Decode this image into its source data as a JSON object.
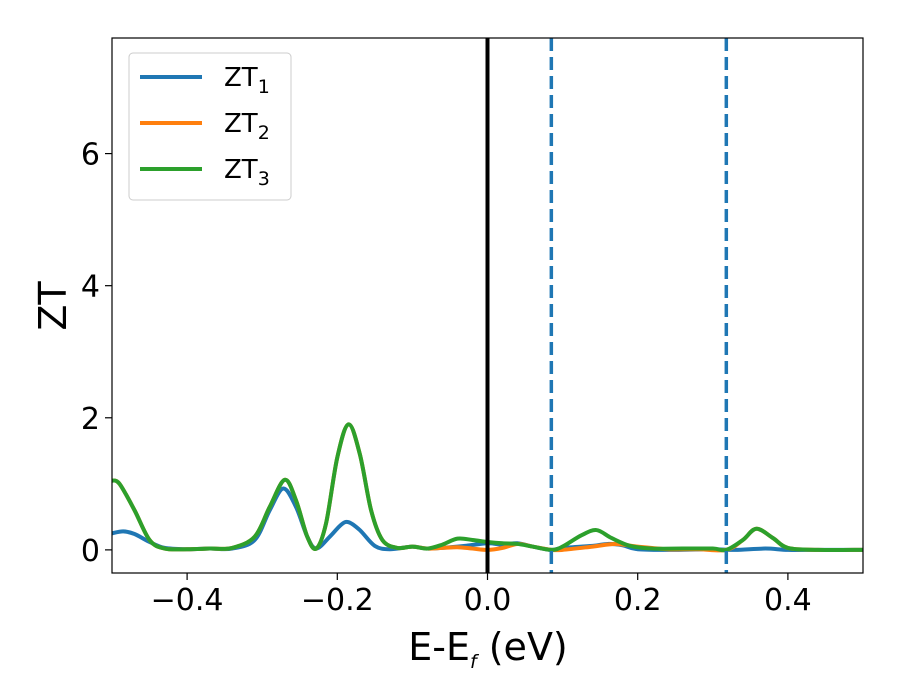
{
  "chart_data": {
    "type": "line",
    "title": "",
    "xlabel": "E-E",
    "xlabel_sub": "f",
    "xlabel_unit": " (eV)",
    "ylabel": "ZT",
    "xlim": [
      -0.5,
      0.5
    ],
    "ylim": [
      -0.35,
      7.75
    ],
    "xticks": [
      -0.4,
      -0.2,
      0.0,
      0.2,
      0.4
    ],
    "xtick_labels": [
      "−0.4",
      "−0.2",
      "0.0",
      "0.2",
      "0.4"
    ],
    "yticks": [
      0,
      2,
      4,
      6
    ],
    "ytick_labels": [
      "0",
      "2",
      "4",
      "6"
    ],
    "grid": false,
    "legend_position": "top-left",
    "vlines": [
      {
        "x": 0.0,
        "style": "solid",
        "color": "#000000"
      },
      {
        "x": 0.085,
        "style": "dashed",
        "color": "#1f77b4"
      },
      {
        "x": 0.318,
        "style": "dashed",
        "color": "#1f77b4"
      }
    ],
    "series": [
      {
        "name": "ZT",
        "sub": "1",
        "color": "#1f77b4",
        "points": [
          [
            -0.5,
            0.25
          ],
          [
            -0.485,
            0.28
          ],
          [
            -0.47,
            0.24
          ],
          [
            -0.45,
            0.12
          ],
          [
            -0.43,
            0.03
          ],
          [
            -0.4,
            0.01
          ],
          [
            -0.37,
            0.02
          ],
          [
            -0.34,
            0.02
          ],
          [
            -0.31,
            0.15
          ],
          [
            -0.29,
            0.6
          ],
          [
            -0.272,
            0.93
          ],
          [
            -0.255,
            0.65
          ],
          [
            -0.24,
            0.2
          ],
          [
            -0.228,
            0.02
          ],
          [
            -0.21,
            0.2
          ],
          [
            -0.195,
            0.38
          ],
          [
            -0.185,
            0.42
          ],
          [
            -0.17,
            0.3
          ],
          [
            -0.15,
            0.06
          ],
          [
            -0.13,
            0.01
          ],
          [
            -0.1,
            0.05
          ],
          [
            -0.08,
            0.02
          ],
          [
            -0.05,
            0.04
          ],
          [
            -0.03,
            0.06
          ],
          [
            0.0,
            0.1
          ],
          [
            0.02,
            0.08
          ],
          [
            0.04,
            0.1
          ],
          [
            0.06,
            0.05
          ],
          [
            0.085,
            0.0
          ],
          [
            0.1,
            0.03
          ],
          [
            0.14,
            0.06
          ],
          [
            0.16,
            0.09
          ],
          [
            0.18,
            0.07
          ],
          [
            0.2,
            0.01
          ],
          [
            0.25,
            0.0
          ],
          [
            0.3,
            0.01
          ],
          [
            0.33,
            0.0
          ],
          [
            0.37,
            0.02
          ],
          [
            0.4,
            0.0
          ],
          [
            0.44,
            0.0
          ],
          [
            0.5,
            0.0
          ]
        ]
      },
      {
        "name": "ZT",
        "sub": "2",
        "color": "#ff7f0e",
        "points": [
          [
            -0.5,
            1.05
          ],
          [
            -0.49,
            1.0
          ],
          [
            -0.47,
            0.6
          ],
          [
            -0.45,
            0.15
          ],
          [
            -0.43,
            0.02
          ],
          [
            -0.4,
            0.01
          ],
          [
            -0.37,
            0.02
          ],
          [
            -0.34,
            0.03
          ],
          [
            -0.31,
            0.2
          ],
          [
            -0.29,
            0.65
          ],
          [
            -0.27,
            1.06
          ],
          [
            -0.255,
            0.75
          ],
          [
            -0.24,
            0.2
          ],
          [
            -0.228,
            0.02
          ],
          [
            -0.215,
            0.4
          ],
          [
            -0.2,
            1.4
          ],
          [
            -0.185,
            1.9
          ],
          [
            -0.17,
            1.45
          ],
          [
            -0.155,
            0.6
          ],
          [
            -0.14,
            0.15
          ],
          [
            -0.12,
            0.03
          ],
          [
            -0.1,
            0.05
          ],
          [
            -0.08,
            0.02
          ],
          [
            -0.06,
            0.03
          ],
          [
            -0.04,
            0.04
          ],
          [
            -0.02,
            0.02
          ],
          [
            0.0,
            0.0
          ],
          [
            0.02,
            0.03
          ],
          [
            0.04,
            0.09
          ],
          [
            0.06,
            0.05
          ],
          [
            0.085,
            0.0
          ],
          [
            0.1,
            0.0
          ],
          [
            0.14,
            0.05
          ],
          [
            0.17,
            0.09
          ],
          [
            0.2,
            0.05
          ],
          [
            0.24,
            0.01
          ],
          [
            0.28,
            0.01
          ],
          [
            0.318,
            0.0
          ],
          [
            0.34,
            0.15
          ],
          [
            0.358,
            0.32
          ],
          [
            0.38,
            0.18
          ],
          [
            0.4,
            0.03
          ],
          [
            0.44,
            0.0
          ],
          [
            0.5,
            0.0
          ]
        ]
      },
      {
        "name": "ZT",
        "sub": "3",
        "color": "#2ca02c",
        "points": [
          [
            -0.5,
            1.05
          ],
          [
            -0.49,
            1.0
          ],
          [
            -0.47,
            0.6
          ],
          [
            -0.45,
            0.15
          ],
          [
            -0.43,
            0.02
          ],
          [
            -0.4,
            0.01
          ],
          [
            -0.37,
            0.02
          ],
          [
            -0.34,
            0.03
          ],
          [
            -0.31,
            0.2
          ],
          [
            -0.29,
            0.65
          ],
          [
            -0.27,
            1.06
          ],
          [
            -0.255,
            0.75
          ],
          [
            -0.24,
            0.2
          ],
          [
            -0.228,
            0.02
          ],
          [
            -0.215,
            0.4
          ],
          [
            -0.2,
            1.4
          ],
          [
            -0.185,
            1.9
          ],
          [
            -0.17,
            1.45
          ],
          [
            -0.155,
            0.6
          ],
          [
            -0.14,
            0.15
          ],
          [
            -0.12,
            0.03
          ],
          [
            -0.1,
            0.05
          ],
          [
            -0.08,
            0.02
          ],
          [
            -0.06,
            0.08
          ],
          [
            -0.04,
            0.17
          ],
          [
            -0.02,
            0.15
          ],
          [
            0.0,
            0.12
          ],
          [
            0.02,
            0.1
          ],
          [
            0.04,
            0.09
          ],
          [
            0.06,
            0.05
          ],
          [
            0.085,
            0.0
          ],
          [
            0.1,
            0.05
          ],
          [
            0.125,
            0.22
          ],
          [
            0.145,
            0.3
          ],
          [
            0.165,
            0.18
          ],
          [
            0.19,
            0.06
          ],
          [
            0.22,
            0.02
          ],
          [
            0.26,
            0.02
          ],
          [
            0.3,
            0.02
          ],
          [
            0.318,
            0.0
          ],
          [
            0.34,
            0.15
          ],
          [
            0.358,
            0.32
          ],
          [
            0.38,
            0.18
          ],
          [
            0.4,
            0.03
          ],
          [
            0.44,
            0.0
          ],
          [
            0.5,
            0.0
          ]
        ]
      }
    ]
  }
}
